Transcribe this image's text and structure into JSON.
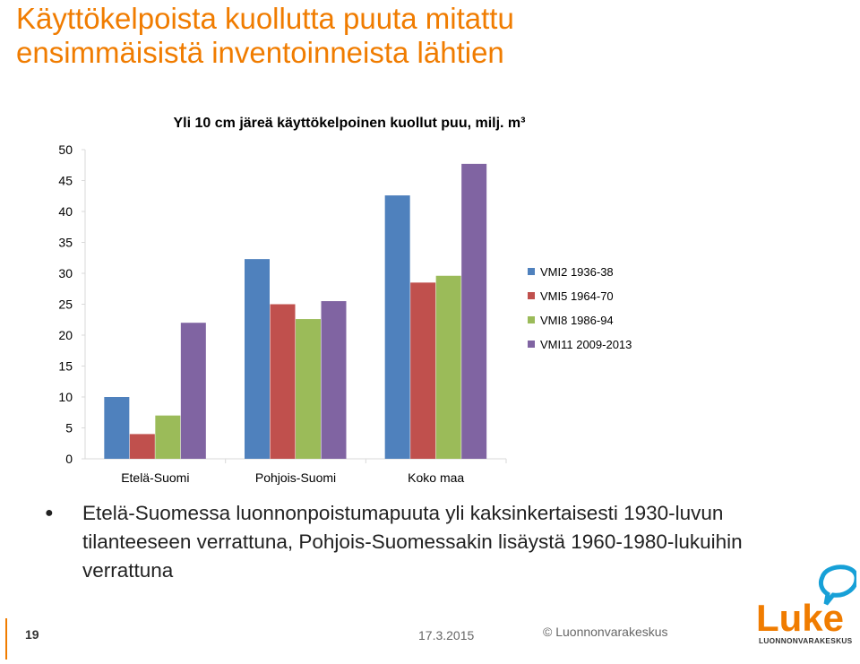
{
  "slide": {
    "title_line1": "Käyttökelpoista kuollutta puuta mitattu",
    "title_line2": "ensimmäisistä inventoinneista lähtien",
    "bullet": "Etelä-Suomessa luonnonpoistumapuuta yli kaksinkertaisesti 1930-luvun tilanteeseen verrattuna, Pohjois-Suomessakin lisäystä 1960-1980-lukuihin verrattuna",
    "page_number": "19",
    "date": "17.3.2015",
    "copyright": "© Luonnonvarakeskus",
    "logo_word": "Luke",
    "logo_sub": "LUONNONVARAKESKUS",
    "accent_color": "#f07c00"
  },
  "chart_data": {
    "type": "bar",
    "title": "Yli 10 cm järeä käyttökelpoinen kuollut puu, milj. m³",
    "categories": [
      "Etelä-Suomi",
      "Pohjois-Suomi",
      "Koko maa"
    ],
    "series": [
      {
        "name": "VMI2 1936-38",
        "color": "#4f81bd",
        "values": [
          10.0,
          32.3,
          42.6
        ]
      },
      {
        "name": "VMI5 1964-70",
        "color": "#c0504d",
        "values": [
          4.0,
          25.0,
          28.5
        ]
      },
      {
        "name": "VMI8 1986-94",
        "color": "#9bbb59",
        "values": [
          7.0,
          22.6,
          29.6
        ]
      },
      {
        "name": "VMI11 2009-2013",
        "color": "#8064a2",
        "values": [
          22.0,
          25.5,
          47.7
        ]
      }
    ],
    "ylim": [
      0,
      50
    ],
    "yticks": [
      0,
      5,
      10,
      15,
      20,
      25,
      30,
      35,
      40,
      45,
      50
    ],
    "grid": false,
    "legend_position": "right"
  }
}
